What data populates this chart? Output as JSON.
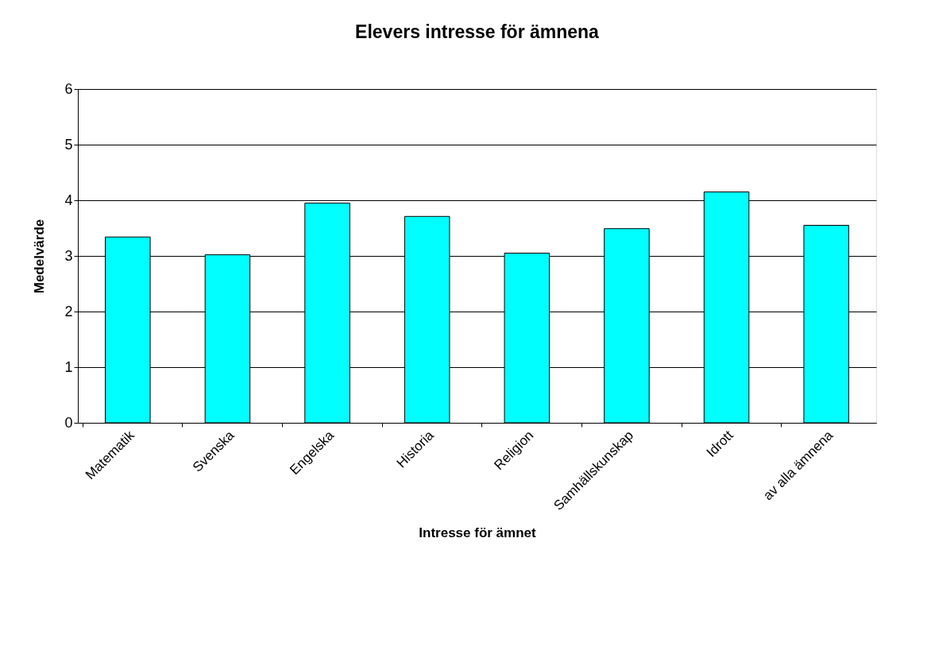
{
  "chart_data": {
    "type": "bar",
    "title": "Elevers intresse för ämnena",
    "xlabel": "Intresse för ämnet",
    "ylabel": "Medelvärde",
    "categories": [
      "Matematik",
      "Svenska",
      "Engelska",
      "Historia",
      "Religion",
      "Samhällskunskap",
      "Idrott",
      "av alla ämnena"
    ],
    "values": [
      3.34,
      3.02,
      3.95,
      3.71,
      3.05,
      3.49,
      4.15,
      3.55
    ],
    "color": "#00ffff",
    "ylim": [
      0,
      6
    ],
    "yticks": [
      0,
      1,
      2,
      3,
      4,
      5,
      6
    ],
    "grid": "y"
  }
}
